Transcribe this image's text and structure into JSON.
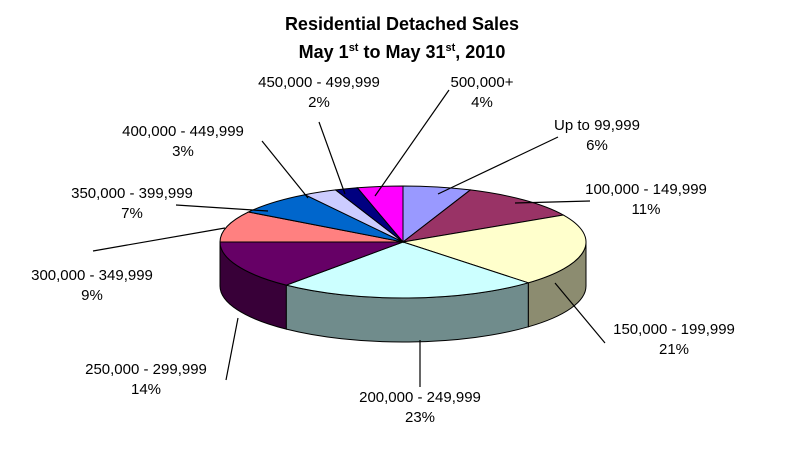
{
  "chart_data": {
    "type": "pie",
    "title": "Residential Detached Sales",
    "subtitle": {
      "month_start": "May 1",
      "sup_start": "st",
      "to": " to May 31",
      "sup_end": "st",
      "year": ", 2010"
    },
    "slices": [
      {
        "label": "Up to 99,999",
        "percent_label": "6%",
        "value": 6,
        "color": "#9999ff"
      },
      {
        "label": "100,000 - 149,999",
        "percent_label": "11%",
        "value": 11,
        "color": "#993366"
      },
      {
        "label": "150,000 - 199,999",
        "percent_label": "21%",
        "value": 21,
        "color": "#ffffcc"
      },
      {
        "label": "200,000 - 249,999",
        "percent_label": "23%",
        "value": 23,
        "color": "#ccffff"
      },
      {
        "label": "250,000 - 299,999",
        "percent_label": "14%",
        "value": 14,
        "color": "#660066"
      },
      {
        "label": "300,000 - 349,999",
        "percent_label": "9%",
        "value": 9,
        "color": "#ff8080"
      },
      {
        "label": "350,000 - 399,999",
        "percent_label": "7%",
        "value": 7,
        "color": "#0066cc"
      },
      {
        "label": "400,000 - 449,999",
        "percent_label": "3%",
        "value": 3,
        "color": "#ccccff"
      },
      {
        "label": "450,000 - 499,999",
        "percent_label": "2%",
        "value": 2,
        "color": "#000080"
      },
      {
        "label": "500,000+",
        "percent_label": "4%",
        "value": 4,
        "color": "#ff00ff"
      }
    ],
    "style": "3d-pie",
    "legend": "none"
  }
}
